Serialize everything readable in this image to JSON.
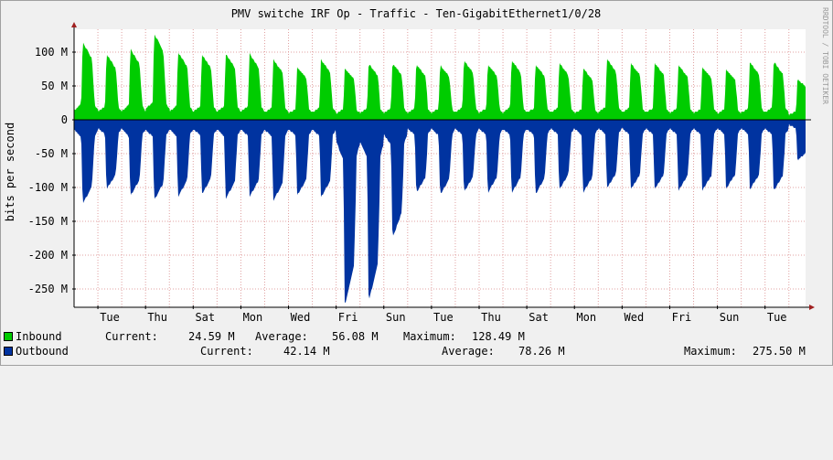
{
  "chart_data": {
    "type": "area",
    "title": "PMV switche IRF Op - Traffic - Ten-GigabitEthernet1/0/28",
    "ylabel": "bits per second",
    "watermark": "RRDTOOL / TOBI OETIKER",
    "ylim": [
      -275000000,
      130000000
    ],
    "y_ticks": [
      {
        "value": 100000000,
        "label": "100 M"
      },
      {
        "value": 50000000,
        "label": "50 M"
      },
      {
        "value": 0,
        "label": "0"
      },
      {
        "value": -50000000,
        "label": "-50 M"
      },
      {
        "value": -100000000,
        "label": "-100 M"
      },
      {
        "value": -150000000,
        "label": "-150 M"
      },
      {
        "value": -200000000,
        "label": "-200 M"
      },
      {
        "value": -250000000,
        "label": "-250 M"
      }
    ],
    "x_ticks": [
      "Tue",
      "Thu",
      "Sat",
      "Mon",
      "Wed",
      "Fri",
      "Sun",
      "Tue",
      "Thu",
      "Sat",
      "Mon",
      "Wed",
      "Fri",
      "Sun",
      "Tue"
    ],
    "grid": true,
    "x_unit": "days",
    "x_start": 0,
    "x_end": 30.7,
    "series": [
      {
        "name": "Inbound",
        "color": "#00cc00",
        "daily_peak_mbps": [
          115,
          97,
          105,
          128,
          100,
          97,
          98,
          98,
          89,
          78,
          89,
          76,
          83,
          84,
          82,
          81,
          88,
          82,
          88,
          82,
          84,
          76,
          90,
          84,
          84,
          81,
          78,
          75,
          85,
          86,
          60
        ],
        "current": "24.59 M",
        "average": "56.08 M",
        "maximum": "128.49 M"
      },
      {
        "name": "Outbound",
        "color": "#0033a0",
        "daily_peak_mbps": [
          -125,
          -103,
          -113,
          -119,
          -114,
          -110,
          -117,
          -114,
          -120,
          -112,
          -115,
          -275,
          -270,
          -175,
          -108,
          -111,
          -107,
          -108,
          -108,
          -110,
          -103,
          -108,
          -101,
          -103,
          -103,
          -105,
          -105,
          -102,
          -103,
          -105,
          -60
        ],
        "current": "42.14 M",
        "average": "78.26 M",
        "maximum": "275.50 M"
      }
    ]
  },
  "legend": {
    "inbound": {
      "name": "Inbound",
      "current_label": "Current:",
      "current": "24.59 M",
      "average_label": "Average:",
      "average": "56.08 M",
      "maximum_label": "Maximum:",
      "maximum": "128.49 M"
    },
    "outbound": {
      "name": "Outbound",
      "current_label": "Current:",
      "current": "42.14 M",
      "average_label": "Average:",
      "average": "78.26 M",
      "maximum_label": "Maximum:",
      "maximum": "275.50 M"
    }
  }
}
